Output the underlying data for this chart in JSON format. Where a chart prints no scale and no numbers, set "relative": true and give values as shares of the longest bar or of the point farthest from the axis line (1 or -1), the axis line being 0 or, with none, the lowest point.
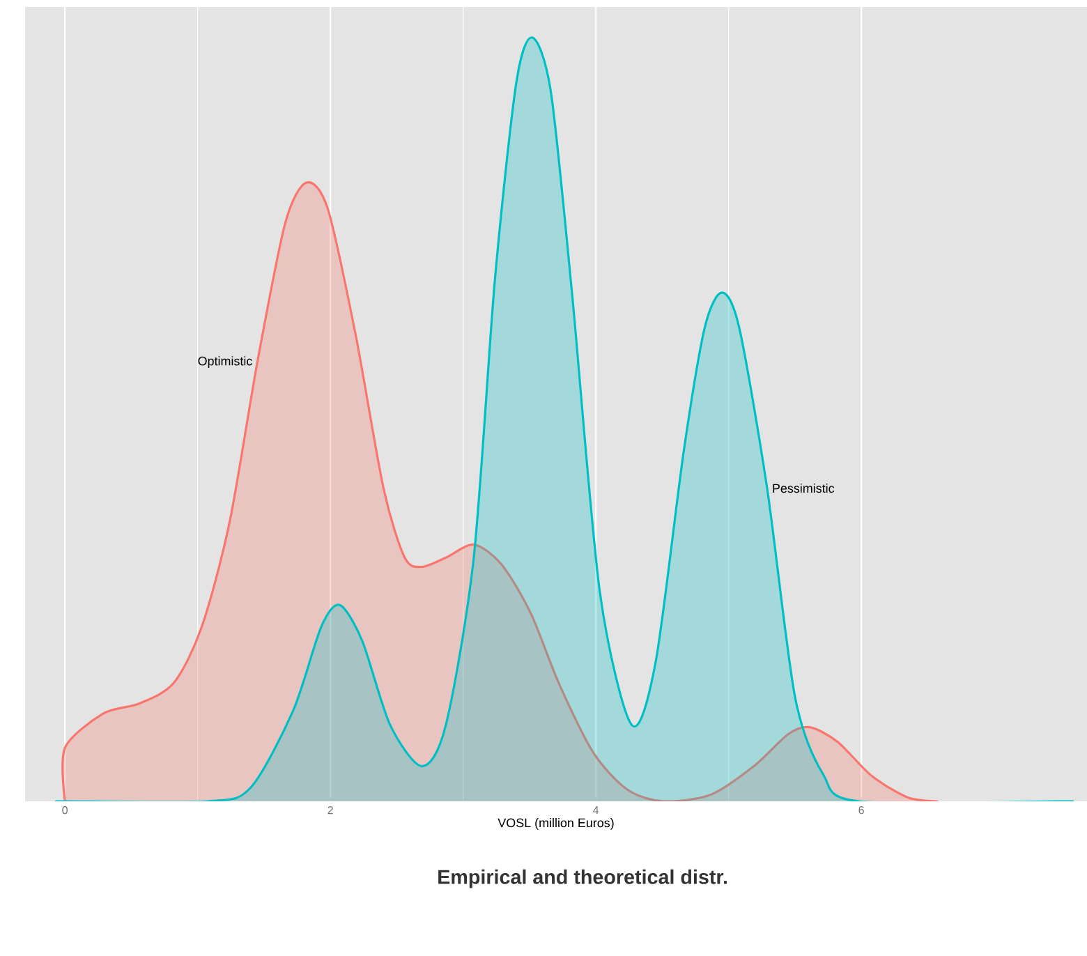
{
  "chart_data": {
    "type": "area",
    "title": "Empirical and theoretical distr.",
    "xlabel": "VOSL (million Euros)",
    "relative": true,
    "xlim": [
      -0.3,
      7.7
    ],
    "xticks": [
      0,
      2,
      4,
      6
    ],
    "grid": "x",
    "series": [
      {
        "name": "Optimistic",
        "color": "#f8766d",
        "x": [
          0,
          0.29,
          0.56,
          0.82,
          1.03,
          1.24,
          1.45,
          1.66,
          1.82,
          1.98,
          2.19,
          2.4,
          2.56,
          2.69,
          2.87,
          3.08,
          3.29,
          3.51,
          3.72,
          3.98,
          4.24,
          4.51,
          4.87,
          5.19,
          5.45,
          5.61,
          5.82,
          6.08,
          6.35,
          6.56
        ],
        "values": [
          0.07,
          0.115,
          0.128,
          0.155,
          0.228,
          0.365,
          0.575,
          0.757,
          0.81,
          0.776,
          0.611,
          0.41,
          0.319,
          0.307,
          0.319,
          0.336,
          0.31,
          0.246,
          0.155,
          0.064,
          0.015,
          0,
          0.009,
          0.046,
          0.088,
          0.097,
          0.078,
          0.033,
          0.005,
          0
        ]
      },
      {
        "name": "Pessimistic",
        "color": "#00bfc4",
        "x": [
          0,
          1.08,
          1.4,
          1.72,
          1.93,
          2.07,
          2.24,
          2.45,
          2.69,
          2.87,
          3.08,
          3.24,
          3.4,
          3.52,
          3.66,
          3.82,
          4.03,
          4.27,
          4.45,
          4.66,
          4.82,
          4.95,
          5.08,
          5.29,
          5.5,
          5.71,
          5.98,
          7.5
        ],
        "values": [
          0,
          0,
          0.018,
          0.119,
          0.228,
          0.257,
          0.21,
          0.1,
          0.046,
          0.1,
          0.319,
          0.684,
          0.94,
          1.0,
          0.93,
          0.666,
          0.274,
          0.1,
          0.182,
          0.456,
          0.62,
          0.666,
          0.62,
          0.41,
          0.137,
          0.036,
          0,
          0
        ]
      }
    ]
  }
}
